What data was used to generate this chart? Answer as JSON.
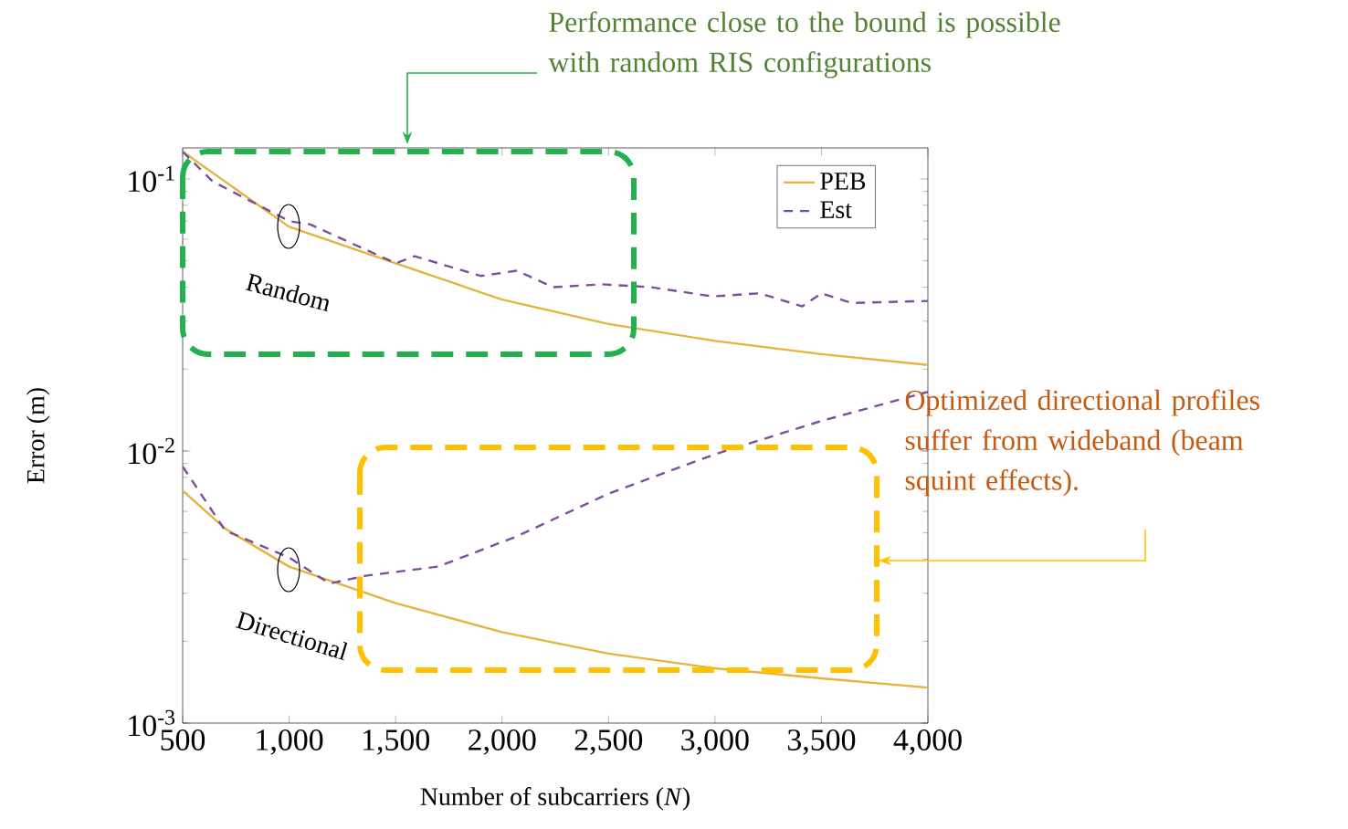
{
  "chart_data": {
    "type": "line",
    "xlabel": "Number of subcarriers (*N*)",
    "ylabel": "Error (m)",
    "log": "y",
    "legend": "top right",
    "marker": "none",
    "xlim": [
      500,
      4000
    ],
    "ylim": [
      0.001,
      0.13
    ],
    "xticks": [
      500,
      {
        "value": 1000,
        "label": "1,000"
      },
      {
        "value": 1500,
        "label": "1,500"
      },
      {
        "value": 2000,
        "label": "2,000"
      },
      {
        "value": 2500,
        "label": "2,500"
      },
      {
        "value": 3000,
        "label": "3,000"
      },
      {
        "value": 3500,
        "label": "3,500"
      },
      {
        "value": 4000,
        "label": "4,000"
      }
    ],
    "yticks": [
      {
        "value": 0.001,
        "label": "10$^{-3}$"
      },
      {
        "value": 0.01,
        "label": "10$^{-2}$"
      },
      {
        "value": 0.1,
        "label": "10$^{-1}$"
      }
    ],
    "series": [
      {
        "name": "PEB",
        "color": "#e6b43c",
        "line_style": "solid",
        "x": [
          500,
          1000,
          1500,
          2000,
          2500,
          3000,
          3500,
          4000
        ],
        "values": [
          0.126,
          0.0667,
          0.049,
          0.036,
          0.0293,
          0.0254,
          0.0227,
          0.0207
        ]
      },
      {
        "name": "Est",
        "color": "#7b4f9b",
        "line_style": "dashed",
        "x": [
          500,
          640,
          1000,
          1100,
          1500,
          1590,
          1900,
          2070,
          2240,
          2470,
          2700,
          2990,
          3210,
          3410,
          3500,
          3640,
          4000
        ],
        "values": [
          0.126,
          0.098,
          0.07,
          0.068,
          0.049,
          0.052,
          0.044,
          0.046,
          0.04,
          0.041,
          0.04,
          0.037,
          0.038,
          0.034,
          0.038,
          0.035,
          0.0356
        ]
      },
      {
        "color": "#e6b43c",
        "line_style": "solid",
        "x": [
          500,
          700,
          1000,
          1500,
          2000,
          2500,
          3000,
          3500,
          4000
        ],
        "values": [
          0.00715,
          0.00518,
          0.00376,
          0.00276,
          0.00216,
          0.0018,
          0.00159,
          0.00146,
          0.00135
        ]
      },
      {
        "color": "#7b4f9b",
        "line_style": "dashed",
        "x": [
          500,
          700,
          1000,
          1190,
          1360,
          1700,
          2070,
          2500,
          3000,
          3500,
          4000
        ],
        "values": [
          0.00877,
          0.0051,
          0.00406,
          0.00326,
          0.00348,
          0.00376,
          0.00486,
          0.00697,
          0.00973,
          0.0129,
          0.0165
        ]
      }
    ],
    "annotations": [
      "Performance close to the bound is possible with random RIS configurations",
      "Optimized directional profiles suffer from wideband (beam squint effects).",
      "Random",
      "Directional"
    ]
  }
}
